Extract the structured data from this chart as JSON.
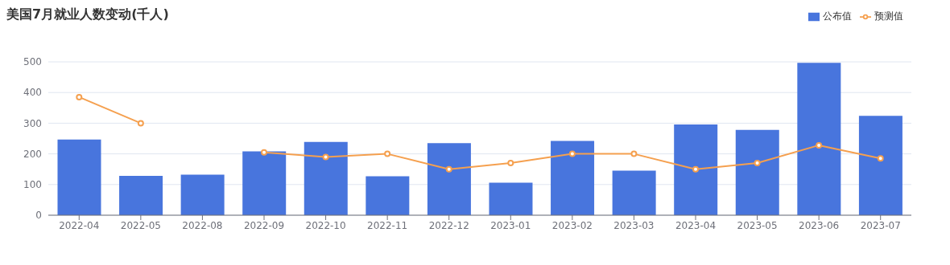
{
  "chart_data": {
    "type": "bar",
    "title": "美国7月就业人数变动(千人)",
    "categories": [
      "2022-04",
      "2022-05",
      "2022-08",
      "2022-09",
      "2022-10",
      "2022-11",
      "2022-12",
      "2023-01",
      "2023-02",
      "2023-03",
      "2023-04",
      "2023-05",
      "2023-06",
      "2023-07"
    ],
    "series": [
      {
        "name": "公布值",
        "color": "#4875dd",
        "values": [
          247,
          128,
          132,
          208,
          239,
          127,
          235,
          106,
          242,
          145,
          296,
          278,
          497,
          324
        ]
      },
      {
        "name": "预测值",
        "type": "line",
        "color": "#f5a04f",
        "values": [
          385,
          300,
          null,
          205,
          190,
          200,
          150,
          170,
          200,
          200,
          150,
          170,
          228,
          185
        ]
      }
    ],
    "ylim": [
      0,
      500
    ],
    "yticks": [
      0,
      100,
      200,
      300,
      400,
      500
    ],
    "grid": "y",
    "legend": "top right",
    "marker": "circle",
    "line_style": "solid"
  }
}
